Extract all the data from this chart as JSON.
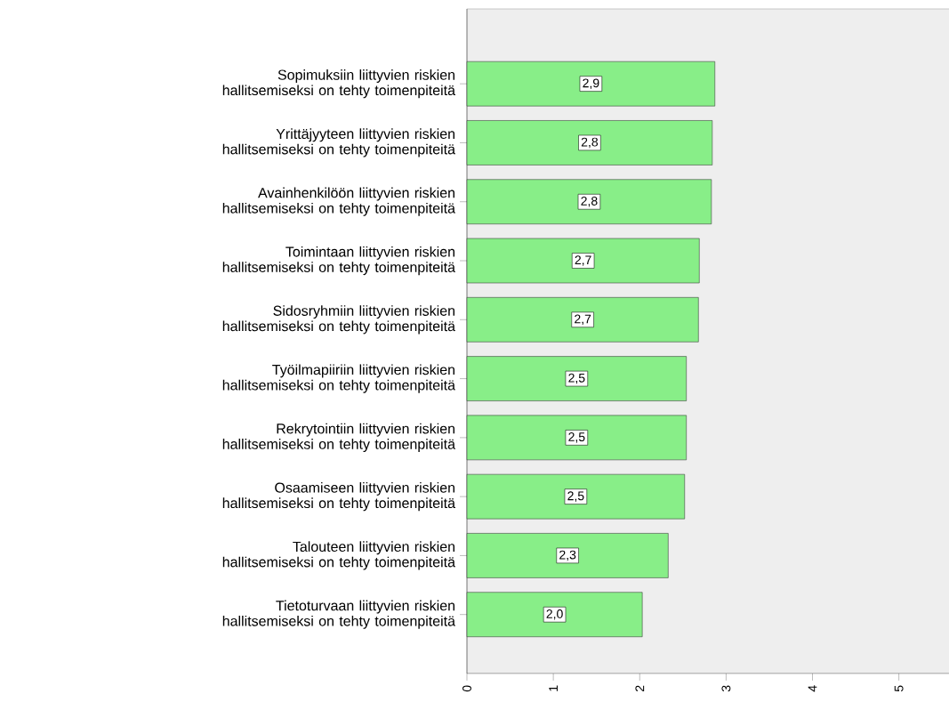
{
  "chart_data": {
    "type": "bar",
    "orientation": "horizontal",
    "color": "#88ee88",
    "categories": [
      "Sopimuksiin liittyvien riskien hallitsemiseksi on tehty toimenpiteitä",
      "Yrittäjyyteen liittyvien riskien hallitsemiseksi on tehty toimenpiteitä",
      "Avainhenkilöön liittyvien riskien hallitsemiseksi on tehty toimenpiteitä",
      "Toimintaan liittyvien riskien hallitsemiseksi on tehty toimenpiteitä",
      "Sidosryhmiin liittyvien riskien hallitsemiseksi on tehty toimenpiteitä",
      "Työilmapiiriin liittyvien riskien hallitsemiseksi on tehty toimenpiteitä",
      "Rekrytointiin liittyvien riskien hallitsemiseksi on tehty toimenpiteitä",
      "Osaamiseen liittyvien riskien hallitsemiseksi on tehty toimenpiteitä",
      "Talouteen liittyvien riskien hallitsemiseksi on tehty toimenpiteitä",
      "Tietoturvaan liittyvien riskien hallitsemiseksi on tehty toimenpiteitä"
    ],
    "values": [
      2.87,
      2.84,
      2.83,
      2.69,
      2.68,
      2.54,
      2.54,
      2.52,
      2.33,
      2.03
    ],
    "value_labels": [
      "2,9",
      "2,8",
      "2,8",
      "2,7",
      "2,7",
      "2,5",
      "2,5",
      "2,5",
      "2,3",
      "2,0"
    ],
    "xlim": [
      0,
      5.58
    ],
    "xticks": [
      0,
      1,
      2,
      3,
      4,
      5
    ],
    "grid": false
  }
}
